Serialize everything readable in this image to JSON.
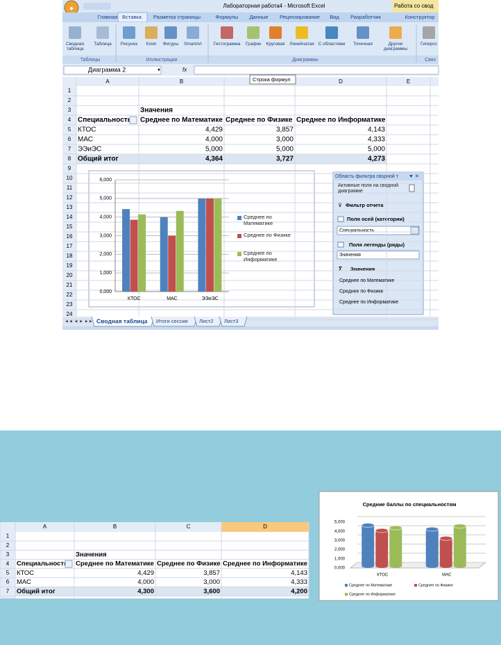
{
  "window": {
    "title": "Лабораторная работа4 - Microsoft Excel",
    "context_tab": "Работа со свод"
  },
  "ribbon": {
    "tabs": [
      "Главная",
      "Вставка",
      "Разметка страницы",
      "Формулы",
      "Данные",
      "Рецензирование",
      "Вид",
      "Разработчик",
      "Конструктор"
    ],
    "buttons": [
      "Сводная таблица",
      "Таблица",
      "Рисунок",
      "Клип",
      "Фигуры",
      "SmartArt",
      "Гистограмма",
      "График",
      "Круговая",
      "Линейчатая",
      "С областями",
      "Точечная",
      "Другие диаграммы",
      "Гиперсс"
    ],
    "groups": [
      "Таблицы",
      "Иллюстрации",
      "Диаграммы",
      "Связ"
    ]
  },
  "formula_bar": {
    "name_box": "Диаграмма 2",
    "fx": "fx",
    "tooltip": "Строка формул"
  },
  "sheet": {
    "columns": [
      "A",
      "B",
      "C",
      "D",
      "E"
    ],
    "row_numbers": [
      1,
      2,
      3,
      4,
      5,
      6,
      7,
      8,
      9,
      10,
      11,
      12,
      13,
      14,
      15,
      16,
      17,
      18,
      19,
      20,
      21,
      22,
      23,
      24
    ],
    "pivot_label": "Значения",
    "header": [
      "Специальность",
      "Среднее по Математике",
      "Среднее по  Физике",
      "Среднее по  Информатике"
    ],
    "rows": [
      [
        "КТОС",
        "4,429",
        "3,857",
        "4,143"
      ],
      [
        "МАС",
        "4,000",
        "3,000",
        "4,333"
      ],
      [
        "ЭЭиЭС",
        "5,000",
        "5,000",
        "5,000"
      ]
    ],
    "total": [
      "Общий итог",
      "4,364",
      "3,727",
      "4,273"
    ],
    "tabs": [
      "Сводная таблица",
      "Итоги сессии",
      "Лист2",
      "Лист3"
    ]
  },
  "chart1": {
    "type": "bar",
    "categories": [
      "КТОС",
      "МАС",
      "ЭЭиЭС"
    ],
    "series": [
      {
        "name": "Среднее по Математике",
        "color": "#4f81bd",
        "values": [
          4.429,
          4.0,
          5.0
        ]
      },
      {
        "name": "Среднее по  Физике",
        "color": "#c0504d",
        "values": [
          3.857,
          3.0,
          5.0
        ]
      },
      {
        "name": "Среднее по  Информатике",
        "color": "#9bbb59",
        "values": [
          4.143,
          4.333,
          5.0
        ]
      }
    ],
    "ylim": [
      0,
      6
    ],
    "yticks": [
      {
        "value": 0,
        "label": "0,000"
      },
      {
        "value": 1,
        "label": "1,000"
      },
      {
        "value": 2,
        "label": "2,000"
      },
      {
        "value": 3,
        "label": "3,000"
      },
      {
        "value": 4,
        "label": "4,000"
      },
      {
        "value": 5,
        "label": "5,000"
      },
      {
        "value": 6,
        "label": "6,000"
      }
    ],
    "grid": true,
    "legend": "right"
  },
  "filter_pane": {
    "title": "Область фильтра сводной т",
    "active_fields": "Активные поля на сводной диаграмме",
    "report_filter": "Фильтр отчета",
    "axis_fields": "Поля осей (категории)",
    "axis_value": "Специальность",
    "legend_fields": "Поля легенды (ряды)",
    "legend_value": "Значения",
    "values_title": "Значения",
    "values": [
      "Среднее по Математике",
      "Среднее по  Физике",
      "Среднее по  Информатике"
    ]
  },
  "sheet2": {
    "columns": [
      "A",
      "B",
      "C",
      "D"
    ],
    "row_numbers": [
      1,
      2,
      3,
      4,
      5,
      6,
      7
    ],
    "pivot_label": "Значения",
    "header": [
      "Специальность",
      "Среднее по Математике",
      "Среднее по  Физике",
      "Среднее по  Информатике"
    ],
    "rows": [
      [
        "КТОС",
        "4,429",
        "3,857",
        "4,143"
      ],
      [
        "МАС",
        "4,000",
        "3,000",
        "4,333"
      ]
    ],
    "total": [
      "Общий итог",
      "4,300",
      "3,600",
      "4,200"
    ]
  },
  "chart2": {
    "type": "bar3d",
    "title": "Средние баллы по специальностям",
    "categories": [
      "КТОС",
      "МАС"
    ],
    "series": [
      {
        "name": "Среднее по Математике",
        "color": "#4f81bd",
        "values": [
          4.429,
          4.0
        ]
      },
      {
        "name": "Среднее по  Физике",
        "color": "#c0504d",
        "values": [
          3.857,
          3.0
        ]
      },
      {
        "name": "Среднее по  Информатике",
        "color": "#9bbb59",
        "values": [
          4.143,
          4.333
        ]
      }
    ],
    "ylim": [
      0,
      5
    ],
    "yticks": [
      {
        "value": 0,
        "label": "0,000"
      },
      {
        "value": 1,
        "label": "1,000"
      },
      {
        "value": 2,
        "label": "2,000"
      },
      {
        "value": 3,
        "label": "3,000"
      },
      {
        "value": 4,
        "label": "4,000"
      },
      {
        "value": 5,
        "label": "5,000"
      }
    ],
    "grid": true,
    "legend": "bottom"
  }
}
